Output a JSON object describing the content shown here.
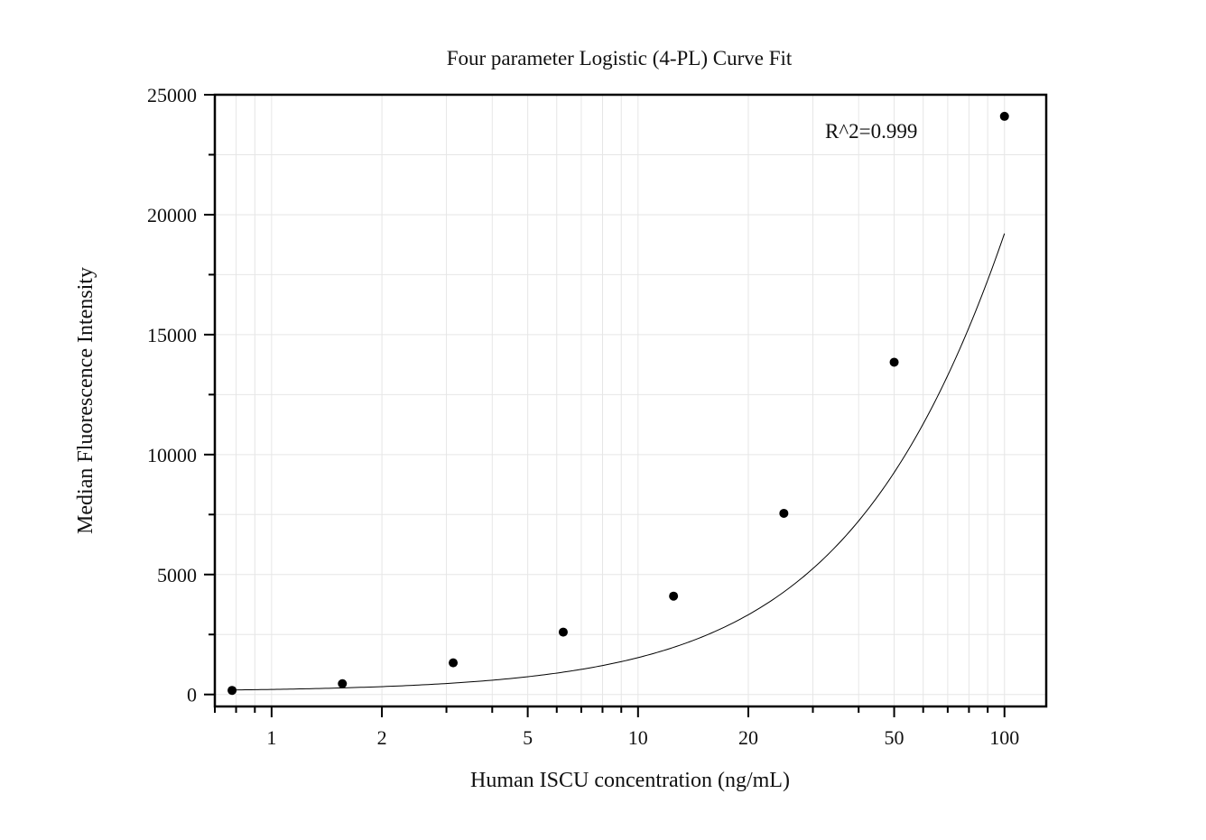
{
  "chart_data": {
    "type": "scatter",
    "title": "Four parameter Logistic (4-PL) Curve Fit",
    "xlabel": "Human ISCU concentration (ng/mL)",
    "ylabel": "Median Fluorescence Intensity",
    "x_scale": "log",
    "xlim": [
      0.7,
      130
    ],
    "ylim": [
      -500,
      25000
    ],
    "x_ticks": [
      1,
      2,
      5,
      10,
      20,
      50,
      100
    ],
    "x_tick_labels": [
      "1",
      "2",
      "5",
      "10",
      "20",
      "50",
      "100"
    ],
    "y_ticks": [
      0,
      5000,
      10000,
      15000,
      20000,
      25000
    ],
    "y_tick_labels": [
      "0",
      "5000",
      "10000",
      "15000",
      "20000",
      "25000"
    ],
    "grid": true,
    "legend": "none",
    "points": {
      "x": [
        0.78,
        1.56,
        3.13,
        6.25,
        12.5,
        25,
        50,
        100
      ],
      "y": [
        170,
        450,
        1320,
        2600,
        4100,
        7550,
        13850,
        24100
      ]
    },
    "fit_curve": {
      "model": "4PL",
      "a": 120,
      "b": 1.2,
      "c": 400,
      "d": 120000
    },
    "annotations": [
      {
        "text": "R^2=0.999"
      }
    ],
    "colors": {
      "points": "#000000",
      "curve": "#000000",
      "grid": "#e6e6e6",
      "frame": "#000000"
    }
  }
}
